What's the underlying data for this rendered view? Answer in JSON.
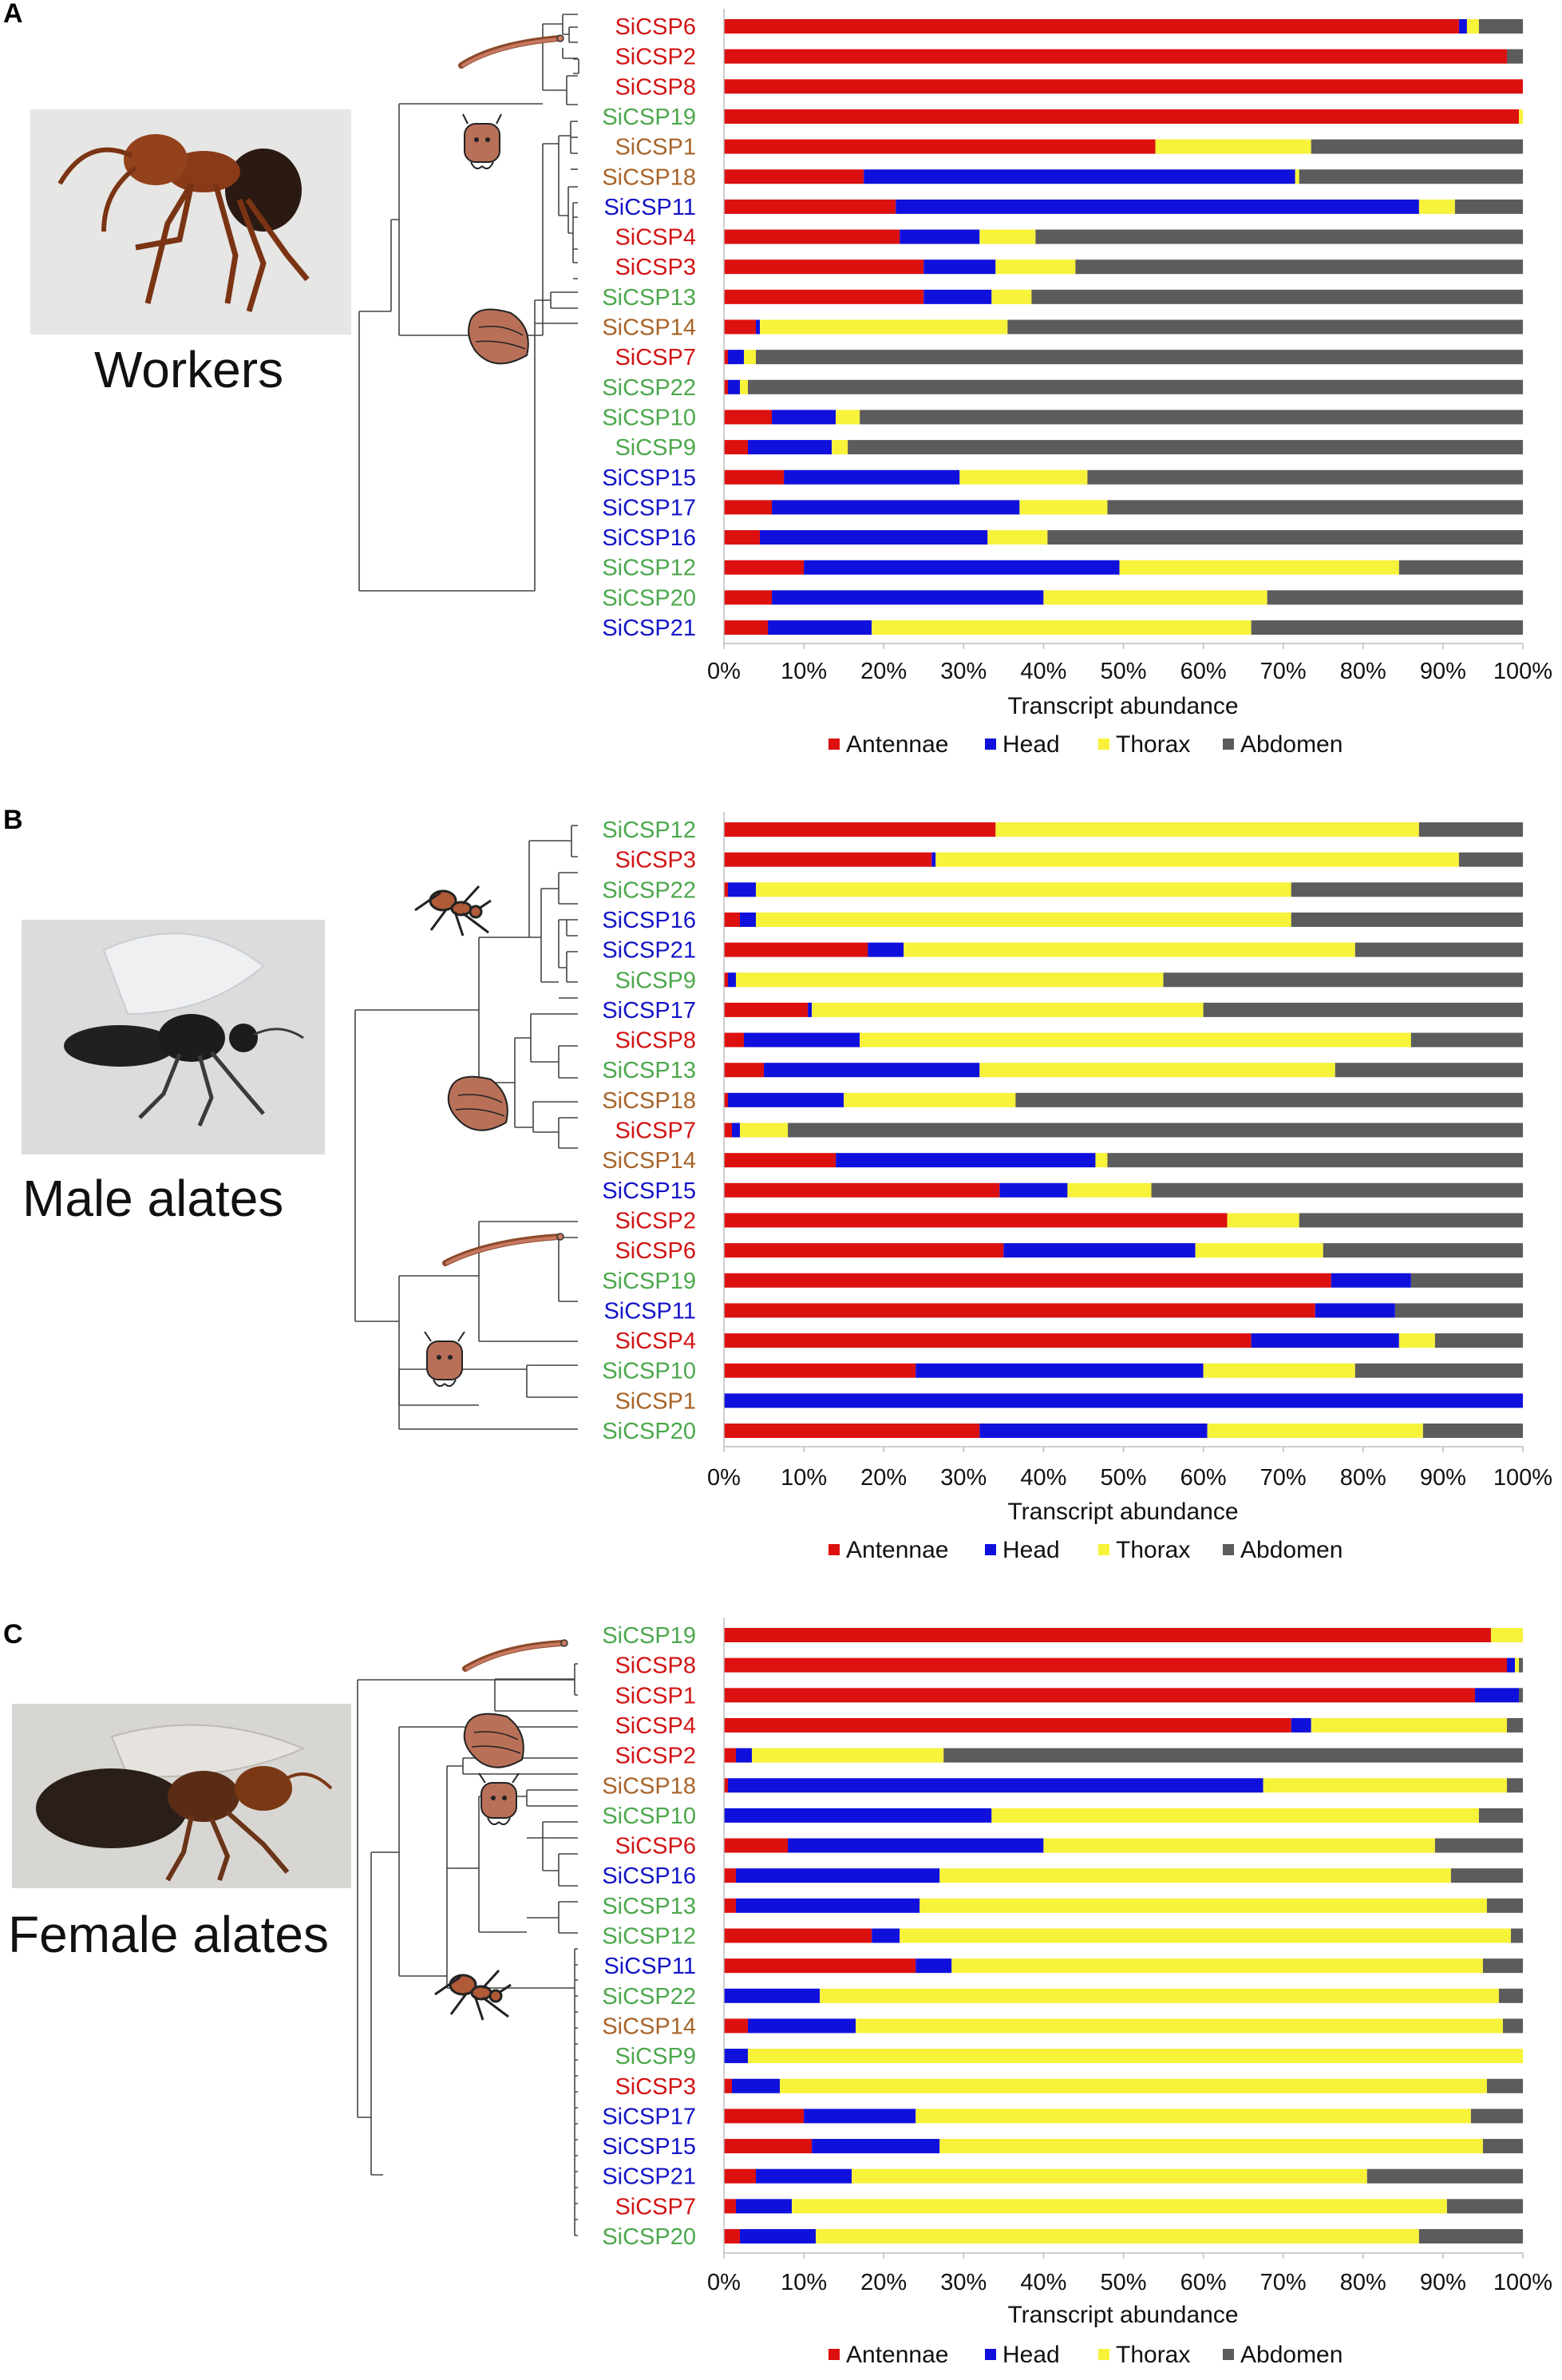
{
  "colors": {
    "Antennae": "#dd1010",
    "Head": "#1010dd",
    "Thorax": "#f7f23a",
    "Abdomen": "#5c5c5c",
    "label_red": "#d21414",
    "label_green": "#4ca84c",
    "label_blue": "#1414c8",
    "label_brown": "#a8642a"
  },
  "chart_data": [
    {
      "panel": "A",
      "caste": "Workers",
      "type": "bar",
      "orientation": "horizontal",
      "stacked": "100%",
      "xlabel": "Transcript abundance",
      "xticks": [
        "0%",
        "10%",
        "20%",
        "30%",
        "40%",
        "50%",
        "60%",
        "70%",
        "80%",
        "90%",
        "100%"
      ],
      "legend": [
        "Antennae",
        "Head",
        "Thorax",
        "Abdomen"
      ],
      "categories": [
        "SiCSP6",
        "SiCSP2",
        "SiCSP8",
        "SiCSP19",
        "SiCSP1",
        "SiCSP18",
        "SiCSP11",
        "SiCSP4",
        "SiCSP3",
        "SiCSP13",
        "SiCSP14",
        "SiCSP7",
        "SiCSP22",
        "SiCSP10",
        "SiCSP9",
        "SiCSP15",
        "SiCSP17",
        "SiCSP16",
        "SiCSP12",
        "SiCSP20",
        "SiCSP21"
      ],
      "label_colors": [
        "red",
        "red",
        "red",
        "green",
        "brown",
        "brown",
        "blue",
        "red",
        "red",
        "green",
        "brown",
        "red",
        "green",
        "green",
        "green",
        "blue",
        "blue",
        "blue",
        "green",
        "green",
        "blue"
      ],
      "series": [
        {
          "name": "Antennae",
          "values": [
            92,
            98,
            100,
            99.5,
            54,
            17.5,
            21.5,
            22,
            25,
            25,
            4,
            0.5,
            0.5,
            6,
            3,
            7.5,
            6,
            4.5,
            10,
            6,
            5.5
          ]
        },
        {
          "name": "Head",
          "values": [
            1,
            0,
            0,
            0,
            0,
            54,
            65.5,
            10,
            9,
            8.5,
            0.5,
            2,
            1.5,
            8,
            10.5,
            22,
            31,
            28.5,
            39.5,
            34,
            13
          ]
        },
        {
          "name": "Thorax",
          "values": [
            1.5,
            0,
            0,
            0.5,
            19.5,
            0.5,
            4.5,
            7,
            10,
            5,
            31,
            1.5,
            1,
            3,
            2,
            16,
            11,
            7.5,
            35,
            28,
            47.5
          ]
        },
        {
          "name": "Abdomen",
          "values": [
            5.5,
            2,
            0,
            0,
            26.5,
            28,
            8.5,
            61,
            56,
            61.5,
            64.5,
            96,
            97,
            83,
            84.5,
            54.5,
            52,
            59.5,
            15.5,
            32,
            34
          ]
        }
      ]
    },
    {
      "panel": "B",
      "caste": "Male alates",
      "type": "bar",
      "orientation": "horizontal",
      "stacked": "100%",
      "xlabel": "Transcript abundance",
      "xticks": [
        "0%",
        "10%",
        "20%",
        "30%",
        "40%",
        "50%",
        "60%",
        "70%",
        "80%",
        "90%",
        "100%"
      ],
      "legend": [
        "Antennae",
        "Head",
        "Thorax",
        "Abdomen"
      ],
      "categories": [
        "SiCSP12",
        "SiCSP3",
        "SiCSP22",
        "SiCSP16",
        "SiCSP21",
        "SiCSP9",
        "SiCSP17",
        "SiCSP8",
        "SiCSP13",
        "SiCSP18",
        "SiCSP7",
        "SiCSP14",
        "SiCSP15",
        "SiCSP2",
        "SiCSP6",
        "SiCSP19",
        "SiCSP11",
        "SiCSP4",
        "SiCSP10",
        "SiCSP1",
        "SiCSP20"
      ],
      "label_colors": [
        "green",
        "red",
        "green",
        "blue",
        "blue",
        "green",
        "blue",
        "red",
        "green",
        "brown",
        "red",
        "brown",
        "blue",
        "red",
        "red",
        "green",
        "blue",
        "red",
        "green",
        "brown",
        "green"
      ],
      "series": [
        {
          "name": "Antennae",
          "values": [
            34,
            26,
            0.5,
            2,
            18,
            0.5,
            10.5,
            2.5,
            5,
            0.5,
            1,
            14,
            34.5,
            63,
            35,
            76,
            74,
            66,
            24,
            0,
            32
          ]
        },
        {
          "name": "Head",
          "values": [
            0,
            0.5,
            3.5,
            2,
            4.5,
            1,
            0.5,
            14.5,
            27,
            14.5,
            1,
            32.5,
            8.5,
            0,
            24,
            10,
            10,
            18.5,
            36,
            100,
            28.5
          ]
        },
        {
          "name": "Thorax",
          "values": [
            53,
            65.5,
            67,
            67,
            56.5,
            53.5,
            49,
            69,
            44.5,
            21.5,
            6,
            1.5,
            10.5,
            9,
            16,
            0,
            0,
            4.5,
            19,
            0,
            27
          ]
        },
        {
          "name": "Abdomen",
          "values": [
            13,
            8,
            29,
            29,
            21,
            45,
            40,
            14,
            23.5,
            63.5,
            92,
            52,
            46.5,
            28,
            25,
            14,
            16,
            11,
            21,
            0,
            12.5
          ]
        }
      ]
    },
    {
      "panel": "C",
      "caste": "Female alates",
      "type": "bar",
      "orientation": "horizontal",
      "stacked": "100%",
      "xlabel": "Transcript abundance",
      "xticks": [
        "0%",
        "10%",
        "20%",
        "30%",
        "40%",
        "50%",
        "60%",
        "70%",
        "80%",
        "90%",
        "100%"
      ],
      "legend": [
        "Antennae",
        "Head",
        "Thorax",
        "Abdomen"
      ],
      "categories": [
        "SiCSP19",
        "SiCSP8",
        "SiCSP1",
        "SiCSP4",
        "SiCSP2",
        "SiCSP18",
        "SiCSP10",
        "SiCSP6",
        "SiCSP16",
        "SiCSP13",
        "SiCSP12",
        "SiCSP11",
        "SiCSP22",
        "SiCSP14",
        "SiCSP9",
        "SiCSP3",
        "SiCSP17",
        "SiCSP15",
        "SiCSP21",
        "SiCSP7",
        "SiCSP20"
      ],
      "label_colors": [
        "green",
        "red",
        "red",
        "red",
        "red",
        "brown",
        "green",
        "red",
        "blue",
        "green",
        "green",
        "blue",
        "green",
        "brown",
        "green",
        "red",
        "blue",
        "blue",
        "blue",
        "red",
        "green"
      ],
      "series": [
        {
          "name": "Antennae",
          "values": [
            96,
            98,
            94,
            71,
            1.5,
            0.5,
            0,
            8,
            1.5,
            1.5,
            18.5,
            24,
            0,
            3,
            0,
            1,
            10,
            11,
            4,
            1.5,
            2
          ]
        },
        {
          "name": "Head",
          "values": [
            0,
            1,
            5.5,
            2.5,
            2,
            67,
            33.5,
            32,
            25.5,
            23,
            3.5,
            4.5,
            12,
            13.5,
            3,
            6,
            14,
            16,
            12,
            7,
            9.5
          ]
        },
        {
          "name": "Thorax",
          "values": [
            4,
            0.5,
            0,
            24.5,
            24,
            30.5,
            61,
            49,
            64,
            71,
            76.5,
            66.5,
            85,
            81,
            97,
            88.5,
            69.5,
            68,
            64.5,
            82,
            75.5
          ]
        },
        {
          "name": "Abdomen",
          "values": [
            0,
            0.5,
            0.5,
            2,
            72.5,
            2,
            5.5,
            11,
            9,
            4.5,
            1.5,
            5,
            3,
            2.5,
            0,
            4.5,
            6.5,
            5,
            19.5,
            9.5,
            13
          ]
        }
      ]
    }
  ]
}
